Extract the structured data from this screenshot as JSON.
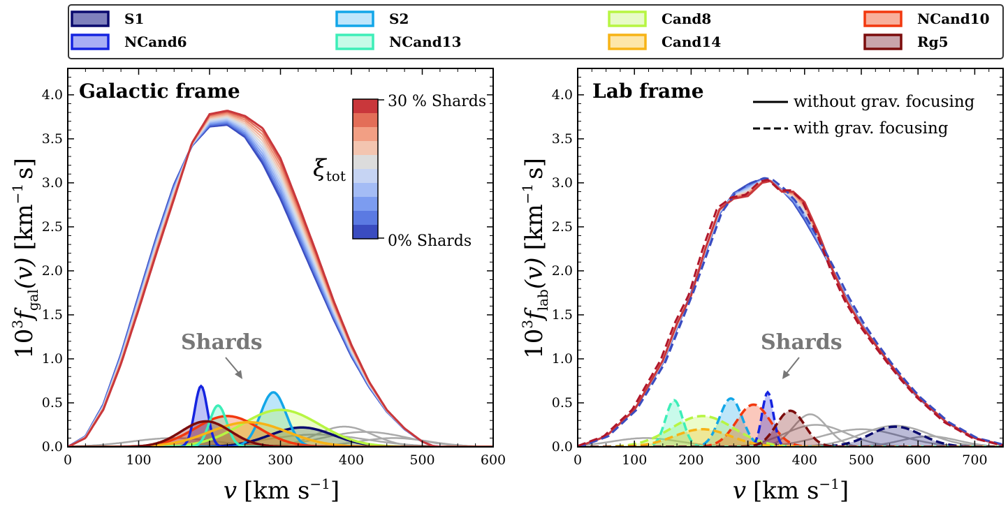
{
  "legend": {
    "items": [
      {
        "label": "S1",
        "stroke": "#0a0a6e",
        "fill": "#7f81bd"
      },
      {
        "label": "S2",
        "stroke": "#12a6e8",
        "fill": "#bfe6fb"
      },
      {
        "label": "Cand8",
        "stroke": "#b7f542",
        "fill": "#e8fbc8"
      },
      {
        "label": "NCand10",
        "stroke": "#f2380e",
        "fill": "#f8b09c"
      },
      {
        "label": "NCand6",
        "stroke": "#1524e0",
        "fill": "#a9aef5"
      },
      {
        "label": "NCand13",
        "stroke": "#3deeb8",
        "fill": "#c6fbe8"
      },
      {
        "label": "Cand14",
        "stroke": "#f7b316",
        "fill": "#fde6a8"
      },
      {
        "label": "Rg5",
        "stroke": "#7b0c0c",
        "fill": "#c9a4ab"
      }
    ]
  },
  "colorbar": {
    "symbol": "ξ",
    "subscript": "tot",
    "top_label": "30 % Shards",
    "bottom_label": "0% Shards",
    "colors": [
      "#c9373b",
      "#e36e58",
      "#f29f84",
      "#f3c5b0",
      "#dcdcdc",
      "#c6d4f3",
      "#a4bcf5",
      "#7c9cf0",
      "#5b7ae2",
      "#3a4cc0"
    ]
  },
  "shards_annotation": "Shards",
  "line_styles": {
    "solid": "without grav. focusing",
    "dashed": "with grav. focusing"
  },
  "chart_data": [
    {
      "type": "line",
      "title": "Galactic frame",
      "xlabel_main": "v",
      "xlabel_unit": "[km s",
      "xlabel_sup": "−1",
      "xlabel_close": "]",
      "ylabel_prefix": "10",
      "ylabel_pow": "3",
      "ylabel_f": "f",
      "ylabel_sub": "gal",
      "ylabel_arg": "(v)",
      "ylabel_unit": "[km",
      "ylabel_unit_sup": "−1",
      "ylabel_unit_end": "s]",
      "xlim": [
        0,
        600
      ],
      "ylim": [
        0,
        4.3
      ],
      "xticks": [
        0,
        100,
        200,
        300,
        400,
        500,
        600
      ],
      "yticks": [
        0.0,
        0.5,
        1.0,
        1.5,
        2.0,
        2.5,
        3.0,
        3.5,
        4.0
      ],
      "ytick_labels": [
        "0.0",
        "0.5",
        "1.0",
        "1.5",
        "2.0",
        "2.5",
        "3.0",
        "3.5",
        "4.0"
      ],
      "total_curves": [
        {
          "name": "0% Shards",
          "x": [
            0,
            25,
            50,
            75,
            100,
            125,
            150,
            175,
            200,
            225,
            250,
            275,
            300,
            325,
            350,
            375,
            400,
            425,
            450,
            475,
            500,
            515,
            528
          ],
          "y": [
            0,
            0.12,
            0.48,
            1.05,
            1.72,
            2.38,
            2.98,
            3.42,
            3.64,
            3.66,
            3.52,
            3.22,
            2.82,
            2.36,
            1.9,
            1.45,
            1.03,
            0.68,
            0.4,
            0.2,
            0.06,
            0.01,
            0
          ]
        },
        {
          "name": "30 % Shards",
          "x": [
            0,
            25,
            50,
            75,
            100,
            125,
            150,
            175,
            200,
            225,
            250,
            275,
            300,
            325,
            350,
            375,
            400,
            425,
            450,
            475,
            500,
            515,
            528
          ],
          "y": [
            0,
            0.1,
            0.42,
            0.94,
            1.56,
            2.2,
            2.82,
            3.45,
            3.78,
            3.82,
            3.76,
            3.62,
            3.28,
            2.76,
            2.22,
            1.66,
            1.16,
            0.74,
            0.42,
            0.21,
            0.06,
            0.01,
            0
          ]
        }
      ],
      "shard_curves": [
        {
          "name": "S1",
          "mu": 330,
          "sigma": 45,
          "peak": 0.22
        },
        {
          "name": "S2",
          "mu": 290,
          "sigma": 18,
          "peak": 0.62
        },
        {
          "name": "Cand8",
          "mu": 300,
          "sigma": 55,
          "peak": 0.42
        },
        {
          "name": "NCand10",
          "mu": 225,
          "sigma": 45,
          "peak": 0.35
        },
        {
          "name": "NCand6",
          "mu": 188,
          "sigma": 9,
          "peak": 0.69
        },
        {
          "name": "NCand13",
          "mu": 212,
          "sigma": 12,
          "peak": 0.47
        },
        {
          "name": "Cand14",
          "mu": 255,
          "sigma": 55,
          "peak": 0.28
        },
        {
          "name": "Rg5",
          "mu": 195,
          "sigma": 35,
          "peak": 0.29
        }
      ],
      "grey_curves": [
        {
          "mu": 390,
          "sigma": 40,
          "peak": 0.23
        },
        {
          "mu": 420,
          "sigma": 60,
          "peak": 0.17
        },
        {
          "mu": 350,
          "sigma": 70,
          "peak": 0.14
        },
        {
          "mu": 150,
          "sigma": 60,
          "peak": 0.1
        },
        {
          "mu": 460,
          "sigma": 50,
          "peak": 0.1
        }
      ],
      "legend_position": "top"
    },
    {
      "type": "line",
      "title": "Lab frame",
      "xlabel_main": "v",
      "xlabel_unit": "[km s",
      "xlabel_sup": "−1",
      "xlabel_close": "]",
      "ylabel_prefix": "10",
      "ylabel_pow": "3",
      "ylabel_f": "f",
      "ylabel_sub": "lab",
      "ylabel_arg": "(v)",
      "ylabel_unit": "[km",
      "ylabel_unit_sup": "−1",
      "ylabel_unit_end": "s]",
      "xlim": [
        0,
        750
      ],
      "ylim": [
        0,
        4.3
      ],
      "xticks": [
        0,
        100,
        200,
        300,
        400,
        500,
        600,
        700
      ],
      "yticks": [
        0.0,
        0.5,
        1.0,
        1.5,
        2.0,
        2.5,
        3.0,
        3.5,
        4.0
      ],
      "ytick_labels": [
        "0.0",
        "0.5",
        "1.0",
        "1.5",
        "2.0",
        "2.5",
        "3.0",
        "3.5",
        "4.0"
      ],
      "total_curves": [
        {
          "name": "0% Shards",
          "x": [
            0,
            50,
            100,
            150,
            175,
            200,
            225,
            250,
            275,
            300,
            325,
            340,
            360,
            380,
            400,
            425,
            450,
            475,
            500,
            525,
            550,
            575,
            600,
            650,
            700,
            750
          ],
          "y": [
            0,
            0.12,
            0.42,
            0.95,
            1.35,
            1.75,
            2.2,
            2.65,
            2.88,
            2.98,
            3.04,
            3.02,
            2.92,
            2.78,
            2.58,
            2.3,
            2.0,
            1.68,
            1.4,
            1.16,
            0.94,
            0.74,
            0.56,
            0.28,
            0.1,
            0.02
          ]
        },
        {
          "name": "30 % Shards",
          "x": [
            0,
            50,
            100,
            150,
            175,
            200,
            225,
            250,
            275,
            300,
            325,
            340,
            360,
            380,
            400,
            425,
            450,
            475,
            500,
            525,
            550,
            575,
            600,
            650,
            700,
            750
          ],
          "y": [
            0,
            0.12,
            0.42,
            0.98,
            1.4,
            1.72,
            2.25,
            2.7,
            2.82,
            2.85,
            3.0,
            3.02,
            2.9,
            2.9,
            2.78,
            2.42,
            2.0,
            1.65,
            1.38,
            1.16,
            0.95,
            0.75,
            0.57,
            0.28,
            0.1,
            0.02
          ]
        }
      ],
      "shard_curves": [
        {
          "name": "S1",
          "mu": 560,
          "sigma": 45,
          "peak": 0.23
        },
        {
          "name": "S2",
          "mu": 270,
          "sigma": 20,
          "peak": 0.55
        },
        {
          "name": "Cand8",
          "mu": 220,
          "sigma": 55,
          "peak": 0.35
        },
        {
          "name": "NCand10",
          "mu": 310,
          "sigma": 30,
          "peak": 0.48
        },
        {
          "name": "NCand6",
          "mu": 335,
          "sigma": 10,
          "peak": 0.62
        },
        {
          "name": "NCand13",
          "mu": 170,
          "sigma": 15,
          "peak": 0.53
        },
        {
          "name": "Cand14",
          "mu": 220,
          "sigma": 50,
          "peak": 0.2
        },
        {
          "name": "Rg5",
          "mu": 375,
          "sigma": 25,
          "peak": 0.41
        }
      ],
      "grey_curves": [
        {
          "mu": 410,
          "sigma": 30,
          "peak": 0.37
        },
        {
          "mu": 420,
          "sigma": 55,
          "peak": 0.25
        },
        {
          "mu": 500,
          "sigma": 70,
          "peak": 0.2
        },
        {
          "mu": 560,
          "sigma": 60,
          "peak": 0.24
        },
        {
          "mu": 120,
          "sigma": 60,
          "peak": 0.1
        },
        {
          "mu": 620,
          "sigma": 50,
          "peak": 0.12
        }
      ]
    }
  ]
}
